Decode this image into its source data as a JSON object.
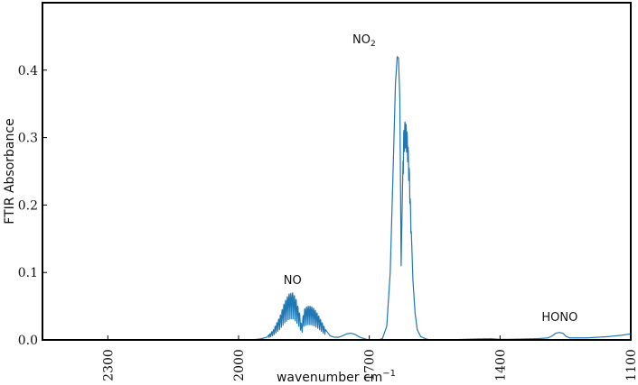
{
  "chart_data": {
    "type": "line",
    "title": "",
    "xlabel": "wavenumber cm",
    "xlabel_sup": "−1",
    "ylabel": "FTIR Absorbance",
    "x_reversed": true,
    "xlim": [
      2450,
      1100
    ],
    "ylim": [
      0,
      0.5
    ],
    "x_ticks": [
      2300,
      2000,
      1700,
      1400,
      1100
    ],
    "x_tick_labels": [
      "2300",
      "2000",
      "1700",
      "1400",
      "1100"
    ],
    "y_ticks": [
      0.0,
      0.1,
      0.2,
      0.3,
      0.4
    ],
    "y_tick_labels": [
      "0.0",
      "0.1",
      "0.2",
      "0.3",
      "0.4"
    ],
    "grid": false,
    "line_color": "#1f77b4",
    "annotations": [
      {
        "text": "NO",
        "x": 1876,
        "y": 0.083
      },
      {
        "text": "NO",
        "sub": "2",
        "x": 1712,
        "y": 0.44
      },
      {
        "text": "HONO",
        "x": 1263,
        "y": 0.028
      }
    ],
    "series": [
      {
        "name": "",
        "envelope": [
          [
            2450,
            0.0
          ],
          [
            1970,
            0.0
          ],
          [
            1950,
            0.0015
          ],
          [
            1935,
            0.004
          ],
          [
            1920,
            0.015
          ],
          [
            1905,
            0.035
          ],
          [
            1895,
            0.055
          ],
          [
            1885,
            0.068
          ],
          [
            1875,
            0.07
          ],
          [
            1868,
            0.06
          ],
          [
            1860,
            0.04
          ],
          [
            1855,
            0.02
          ],
          [
            1850,
            0.045
          ],
          [
            1842,
            0.05
          ],
          [
            1834,
            0.05
          ],
          [
            1826,
            0.046
          ],
          [
            1818,
            0.038
          ],
          [
            1810,
            0.028
          ],
          [
            1800,
            0.015
          ],
          [
            1790,
            0.006
          ],
          [
            1780,
            0.004
          ],
          [
            1770,
            0.004
          ],
          [
            1762,
            0.006
          ],
          [
            1752,
            0.009
          ],
          [
            1742,
            0.01
          ],
          [
            1732,
            0.008
          ],
          [
            1722,
            0.004
          ],
          [
            1710,
            0.0015
          ],
          [
            1700,
            0.0
          ],
          [
            1690,
            0.0
          ],
          [
            1680,
            0.0
          ],
          [
            1670,
            0.002
          ],
          [
            1660,
            0.02
          ],
          [
            1652,
            0.1
          ],
          [
            1645,
            0.26
          ],
          [
            1640,
            0.38
          ],
          [
            1636,
            0.42
          ],
          [
            1633,
            0.418
          ],
          [
            1630,
            0.36
          ],
          [
            1628,
            0.2
          ],
          [
            1627,
            0.11
          ],
          [
            1624,
            0.22
          ],
          [
            1621,
            0.31
          ],
          [
            1618,
            0.325
          ],
          [
            1615,
            0.32
          ],
          [
            1612,
            0.3
          ],
          [
            1608,
            0.25
          ],
          [
            1604,
            0.17
          ],
          [
            1600,
            0.09
          ],
          [
            1595,
            0.04
          ],
          [
            1590,
            0.015
          ],
          [
            1582,
            0.005
          ],
          [
            1570,
            0.0015
          ],
          [
            1560,
            0.0
          ],
          [
            1550,
            0.0
          ],
          [
            1500,
            0.0005
          ],
          [
            1450,
            0.0015
          ],
          [
            1420,
            0.0018
          ],
          [
            1400,
            0.0008
          ],
          [
            1370,
            0.001
          ],
          [
            1340,
            0.0015
          ],
          [
            1310,
            0.002
          ],
          [
            1290,
            0.003
          ],
          [
            1280,
            0.006
          ],
          [
            1272,
            0.01
          ],
          [
            1264,
            0.011
          ],
          [
            1256,
            0.01
          ],
          [
            1248,
            0.005
          ],
          [
            1240,
            0.003
          ],
          [
            1200,
            0.003
          ],
          [
            1150,
            0.005
          ],
          [
            1120,
            0.007
          ],
          [
            1100,
            0.009
          ]
        ],
        "noisy_bands": [
          {
            "from": 1930,
            "to": 1800,
            "spacing": 4,
            "depth": 0.55
          },
          {
            "from": 1622,
            "to": 1603,
            "spacing": 2.5,
            "depth": 0.12
          }
        ]
      }
    ]
  }
}
